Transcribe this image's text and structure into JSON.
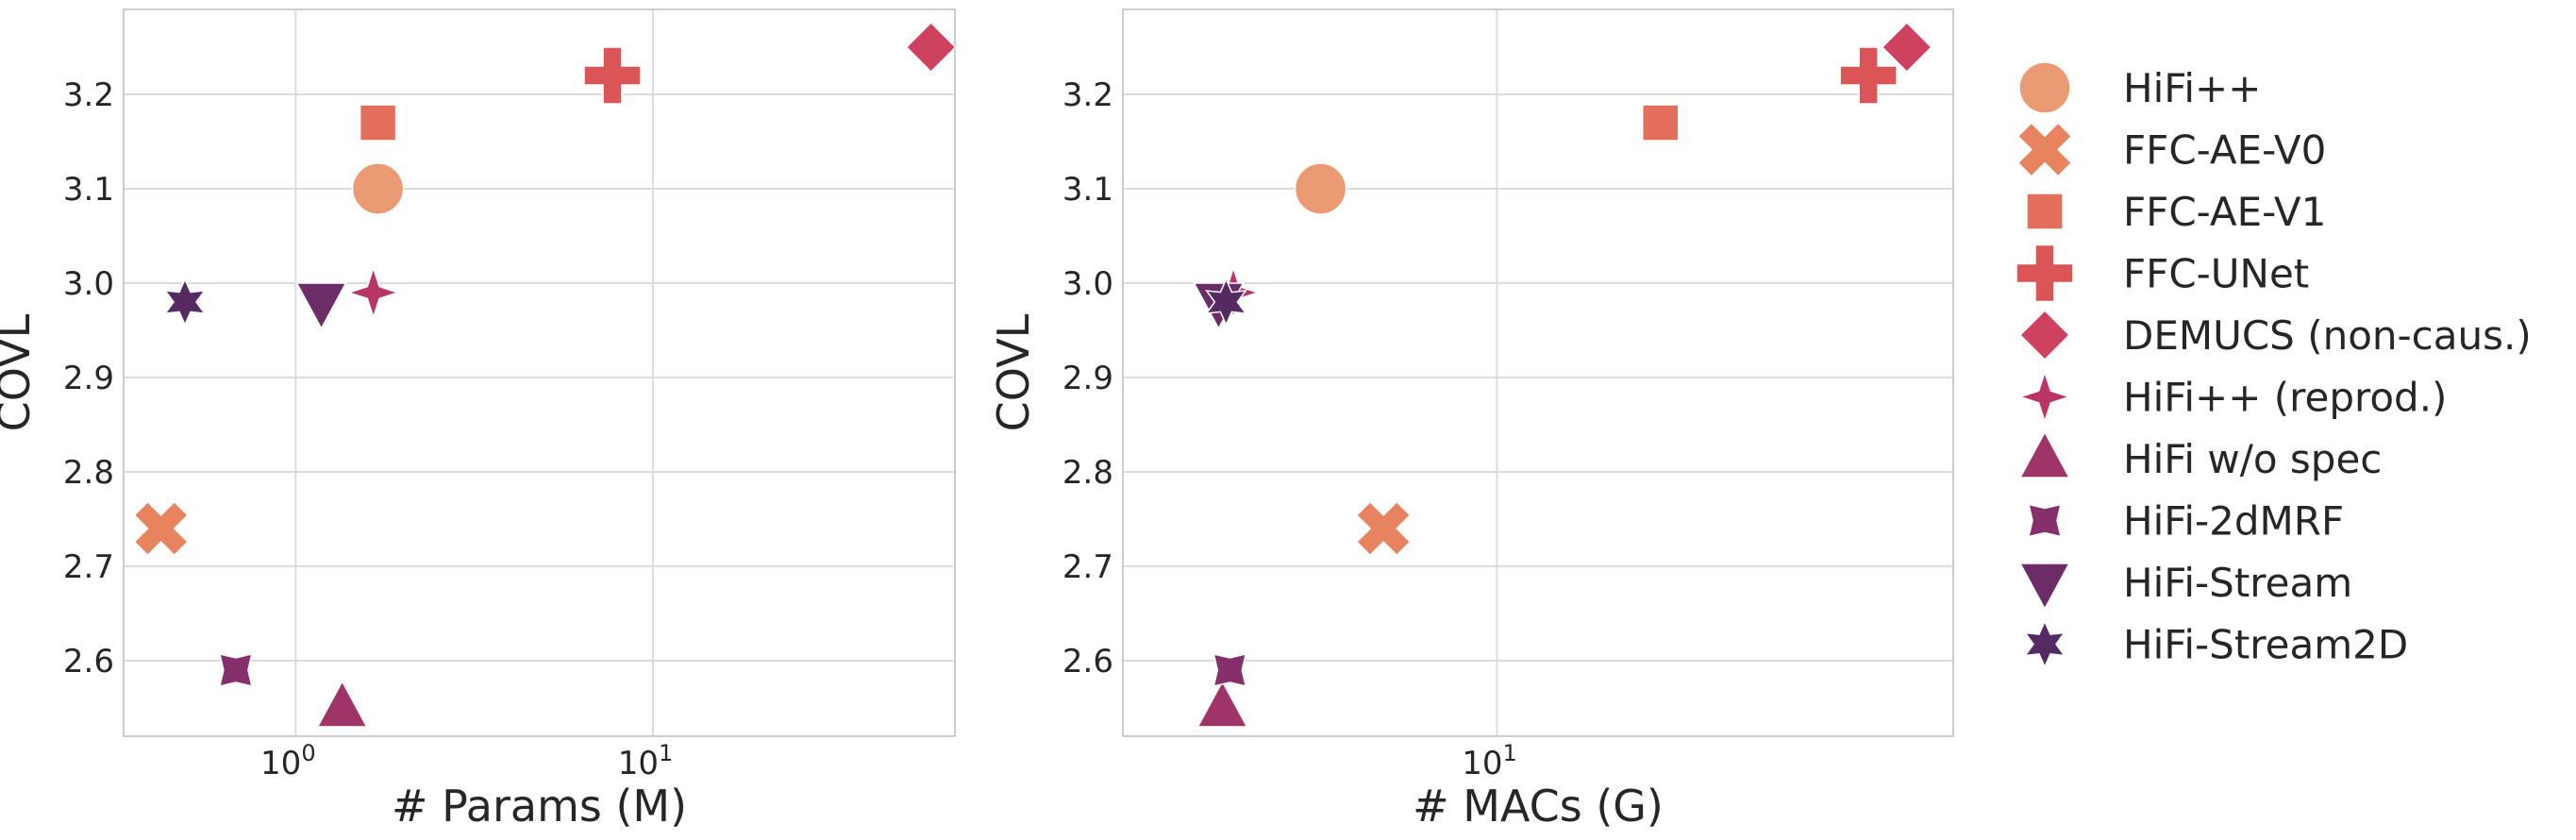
{
  "series_styles": [
    {
      "name": "HiFi++",
      "color": "#ea9b73",
      "marker": "circle"
    },
    {
      "name": "FFC-AE-V0",
      "color": "#e7845f",
      "marker": "x"
    },
    {
      "name": "FFC-AE-V1",
      "color": "#e26e5b",
      "marker": "square"
    },
    {
      "name": "FFC-UNet",
      "color": "#dc5556",
      "marker": "plus"
    },
    {
      "name": "DEMUCS (non-caus.)",
      "color": "#ce4260",
      "marker": "diamond"
    },
    {
      "name": "HiFi++ (reprod.)",
      "color": "#b83566",
      "marker": "star4"
    },
    {
      "name": "HiFi w/o spec",
      "color": "#9f3469",
      "marker": "triangle-up"
    },
    {
      "name": "HiFi-2dMRF",
      "color": "#86306b",
      "marker": "star4-concave"
    },
    {
      "name": "HiFi-Stream",
      "color": "#6b2c68",
      "marker": "triangle-down"
    },
    {
      "name": "HiFi-Stream2D",
      "color": "#552962",
      "marker": "star6"
    }
  ],
  "chart_data": [
    {
      "type": "scatter",
      "xlabel": "# Params (M)",
      "ylabel": "COVL",
      "xscale": "log",
      "xlim": [
        0.33,
        70
      ],
      "ylim": [
        2.52,
        3.29
      ],
      "xticks": [
        {
          "value": 1,
          "base": "10",
          "exp": "0"
        },
        {
          "value": 10,
          "base": "10",
          "exp": "1"
        }
      ],
      "yticks": [
        2.6,
        2.7,
        2.8,
        2.9,
        3.0,
        3.1,
        3.2
      ],
      "grid": true,
      "series": [
        {
          "name": "HiFi++",
          "x": 1.7,
          "y": 3.1
        },
        {
          "name": "FFC-AE-V0",
          "x": 0.42,
          "y": 2.74
        },
        {
          "name": "FFC-AE-V1",
          "x": 1.7,
          "y": 3.17
        },
        {
          "name": "FFC-UNet",
          "x": 7.7,
          "y": 3.22
        },
        {
          "name": "DEMUCS (non-caus.)",
          "x": 60.0,
          "y": 3.25
        },
        {
          "name": "HiFi++ (reprod.)",
          "x": 1.65,
          "y": 2.99
        },
        {
          "name": "HiFi w/o spec",
          "x": 1.35,
          "y": 2.55
        },
        {
          "name": "HiFi-2dMRF",
          "x": 0.68,
          "y": 2.59
        },
        {
          "name": "HiFi-Stream",
          "x": 1.18,
          "y": 2.98
        },
        {
          "name": "HiFi-Stream2D",
          "x": 0.49,
          "y": 2.98
        }
      ]
    },
    {
      "type": "scatter",
      "xlabel": "# MACs (G)",
      "ylabel": "COVL",
      "xscale": "log",
      "xlim": [
        2.3,
        60
      ],
      "ylim": [
        2.52,
        3.29
      ],
      "xticks": [
        {
          "value": 10,
          "base": "10",
          "exp": "1"
        }
      ],
      "yticks": [
        2.6,
        2.7,
        2.8,
        2.9,
        3.0,
        3.1,
        3.2
      ],
      "grid": true,
      "series": [
        {
          "name": "HiFi++",
          "x": 5.0,
          "y": 3.1
        },
        {
          "name": "FFC-AE-V0",
          "x": 6.4,
          "y": 2.74
        },
        {
          "name": "FFC-AE-V1",
          "x": 19.0,
          "y": 3.17
        },
        {
          "name": "FFC-UNet",
          "x": 43.0,
          "y": 3.22
        },
        {
          "name": "DEMUCS (non-caus.)",
          "x": 50.0,
          "y": 3.25
        },
        {
          "name": "HiFi++ (reprod.)",
          "x": 3.55,
          "y": 2.99
        },
        {
          "name": "HiFi w/o spec",
          "x": 3.4,
          "y": 2.55
        },
        {
          "name": "HiFi-2dMRF",
          "x": 3.5,
          "y": 2.59
        },
        {
          "name": "HiFi-Stream",
          "x": 3.35,
          "y": 2.98
        },
        {
          "name": "HiFi-Stream2D",
          "x": 3.45,
          "y": 2.98
        }
      ]
    }
  ],
  "legend": {
    "position": "right",
    "entries": [
      "HiFi++",
      "FFC-AE-V0",
      "FFC-AE-V1",
      "FFC-UNet",
      "DEMUCS (non-caus.)",
      "HiFi++ (reprod.)",
      "HiFi w/o spec",
      "HiFi-2dMRF",
      "HiFi-Stream",
      "HiFi-Stream2D"
    ]
  }
}
